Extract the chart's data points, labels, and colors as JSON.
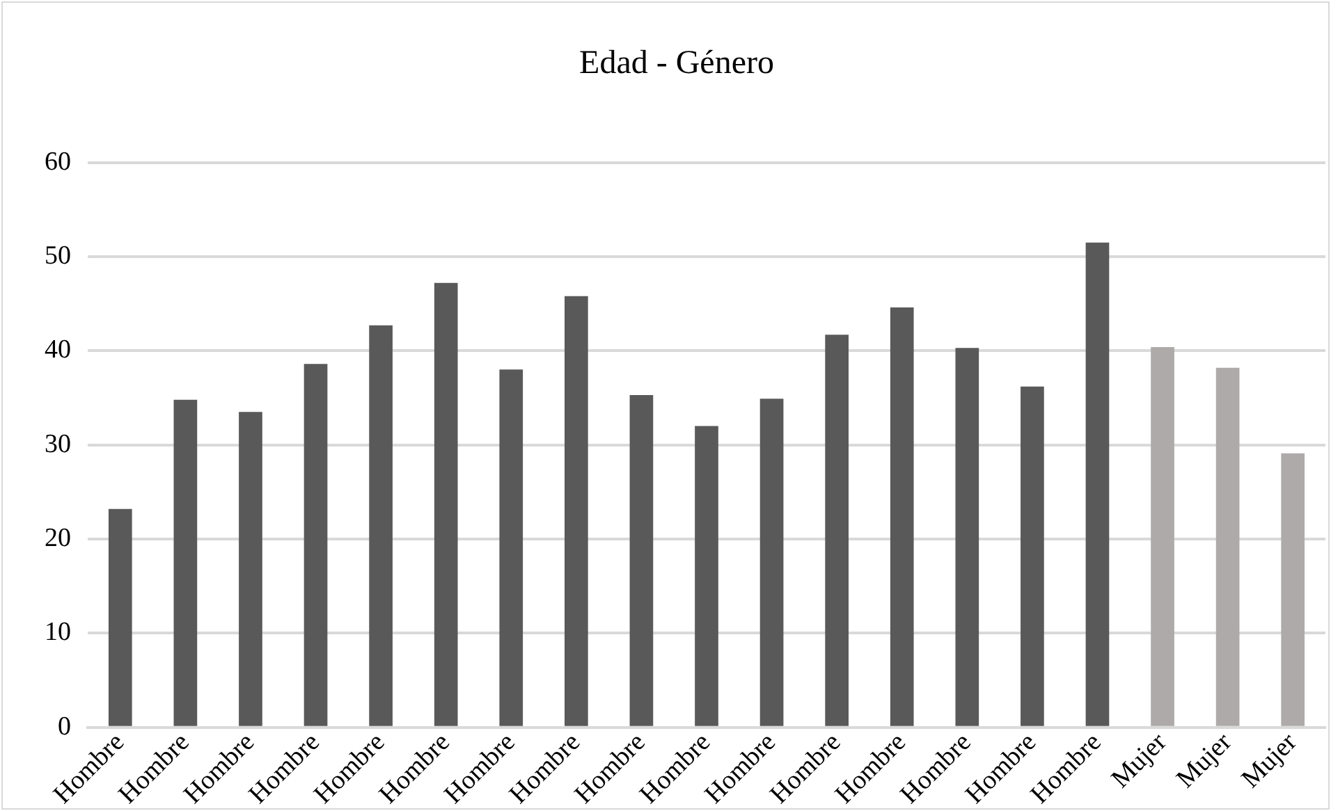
{
  "chart_data": {
    "type": "bar",
    "title": "Edad - Género",
    "categories": [
      "Hombre",
      "Hombre",
      "Hombre",
      "Hombre",
      "Hombre",
      "Hombre",
      "Hombre",
      "Hombre",
      "Hombre",
      "Hombre",
      "Hombre",
      "Hombre",
      "Hombre",
      "Hombre",
      "Hombre",
      "Hombre",
      "Mujer",
      "Mujer",
      "Mujer"
    ],
    "values": [
      23.2,
      34.8,
      33.5,
      38.6,
      42.7,
      47.2,
      38.0,
      45.8,
      35.3,
      32.0,
      34.9,
      41.7,
      44.6,
      40.3,
      36.2,
      51.5,
      40.4,
      38.2,
      29.1
    ],
    "colors": [
      "#595959",
      "#595959",
      "#595959",
      "#595959",
      "#595959",
      "#595959",
      "#595959",
      "#595959",
      "#595959",
      "#595959",
      "#595959",
      "#595959",
      "#595959",
      "#595959",
      "#595959",
      "#595959",
      "#aeaaaa",
      "#aeaaaa",
      "#aeaaaa"
    ],
    "ylim": [
      0,
      60
    ],
    "yticks": [
      0,
      10,
      20,
      30,
      40,
      50,
      60
    ],
    "grid": "y"
  }
}
